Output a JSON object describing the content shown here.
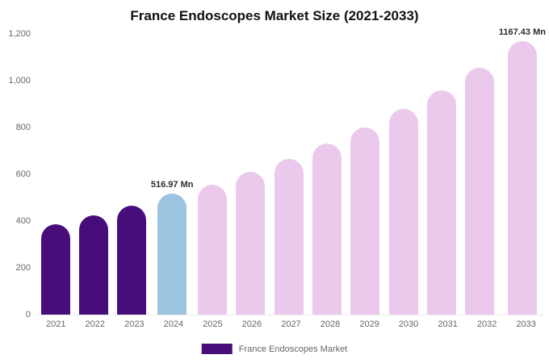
{
  "title": "France Endoscopes Market Size (2021-2033)",
  "legend": {
    "label": "France Endoscopes Market",
    "swatch_color": "#470d7b"
  },
  "colors": {
    "historical_bar": "#470d7b",
    "base_year_bar": "#9ac4df",
    "forecast_bar": "#ebc9ed",
    "axis_text": "#666666",
    "data_label_text": "#2b2b2b"
  },
  "chart_data": {
    "type": "bar",
    "title": "France Endoscopes Market Size (2021-2033)",
    "unit": "Mn",
    "categories": [
      "2021",
      "2022",
      "2023",
      "2024",
      "2025",
      "2026",
      "2027",
      "2028",
      "2029",
      "2030",
      "2031",
      "2032",
      "2033"
    ],
    "values": [
      385,
      425,
      465,
      516.97,
      555,
      610,
      665,
      730,
      800,
      880,
      960,
      1055,
      1167.43
    ],
    "data_labels": {
      "2024": "516.97 Mn",
      "2033": "1167.43 Mn"
    },
    "bar_colors": [
      "#470d7b",
      "#470d7b",
      "#470d7b",
      "#9ac4df",
      "#ebc9ed",
      "#ebc9ed",
      "#ebc9ed",
      "#ebc9ed",
      "#ebc9ed",
      "#ebc9ed",
      "#ebc9ed",
      "#ebc9ed",
      "#ebc9ed"
    ],
    "ylim": [
      0,
      1200
    ],
    "yticks": [
      {
        "value": 0,
        "label": "0"
      },
      {
        "value": 200,
        "label": "200"
      },
      {
        "value": 400,
        "label": "400"
      },
      {
        "value": 600,
        "label": "600"
      },
      {
        "value": 800,
        "label": "800"
      },
      {
        "value": 1000,
        "label": "1,000"
      },
      {
        "value": 1200,
        "label": "1,200"
      }
    ],
    "grid": false,
    "legend_position": "bottom",
    "xlabel": "",
    "ylabel": ""
  }
}
